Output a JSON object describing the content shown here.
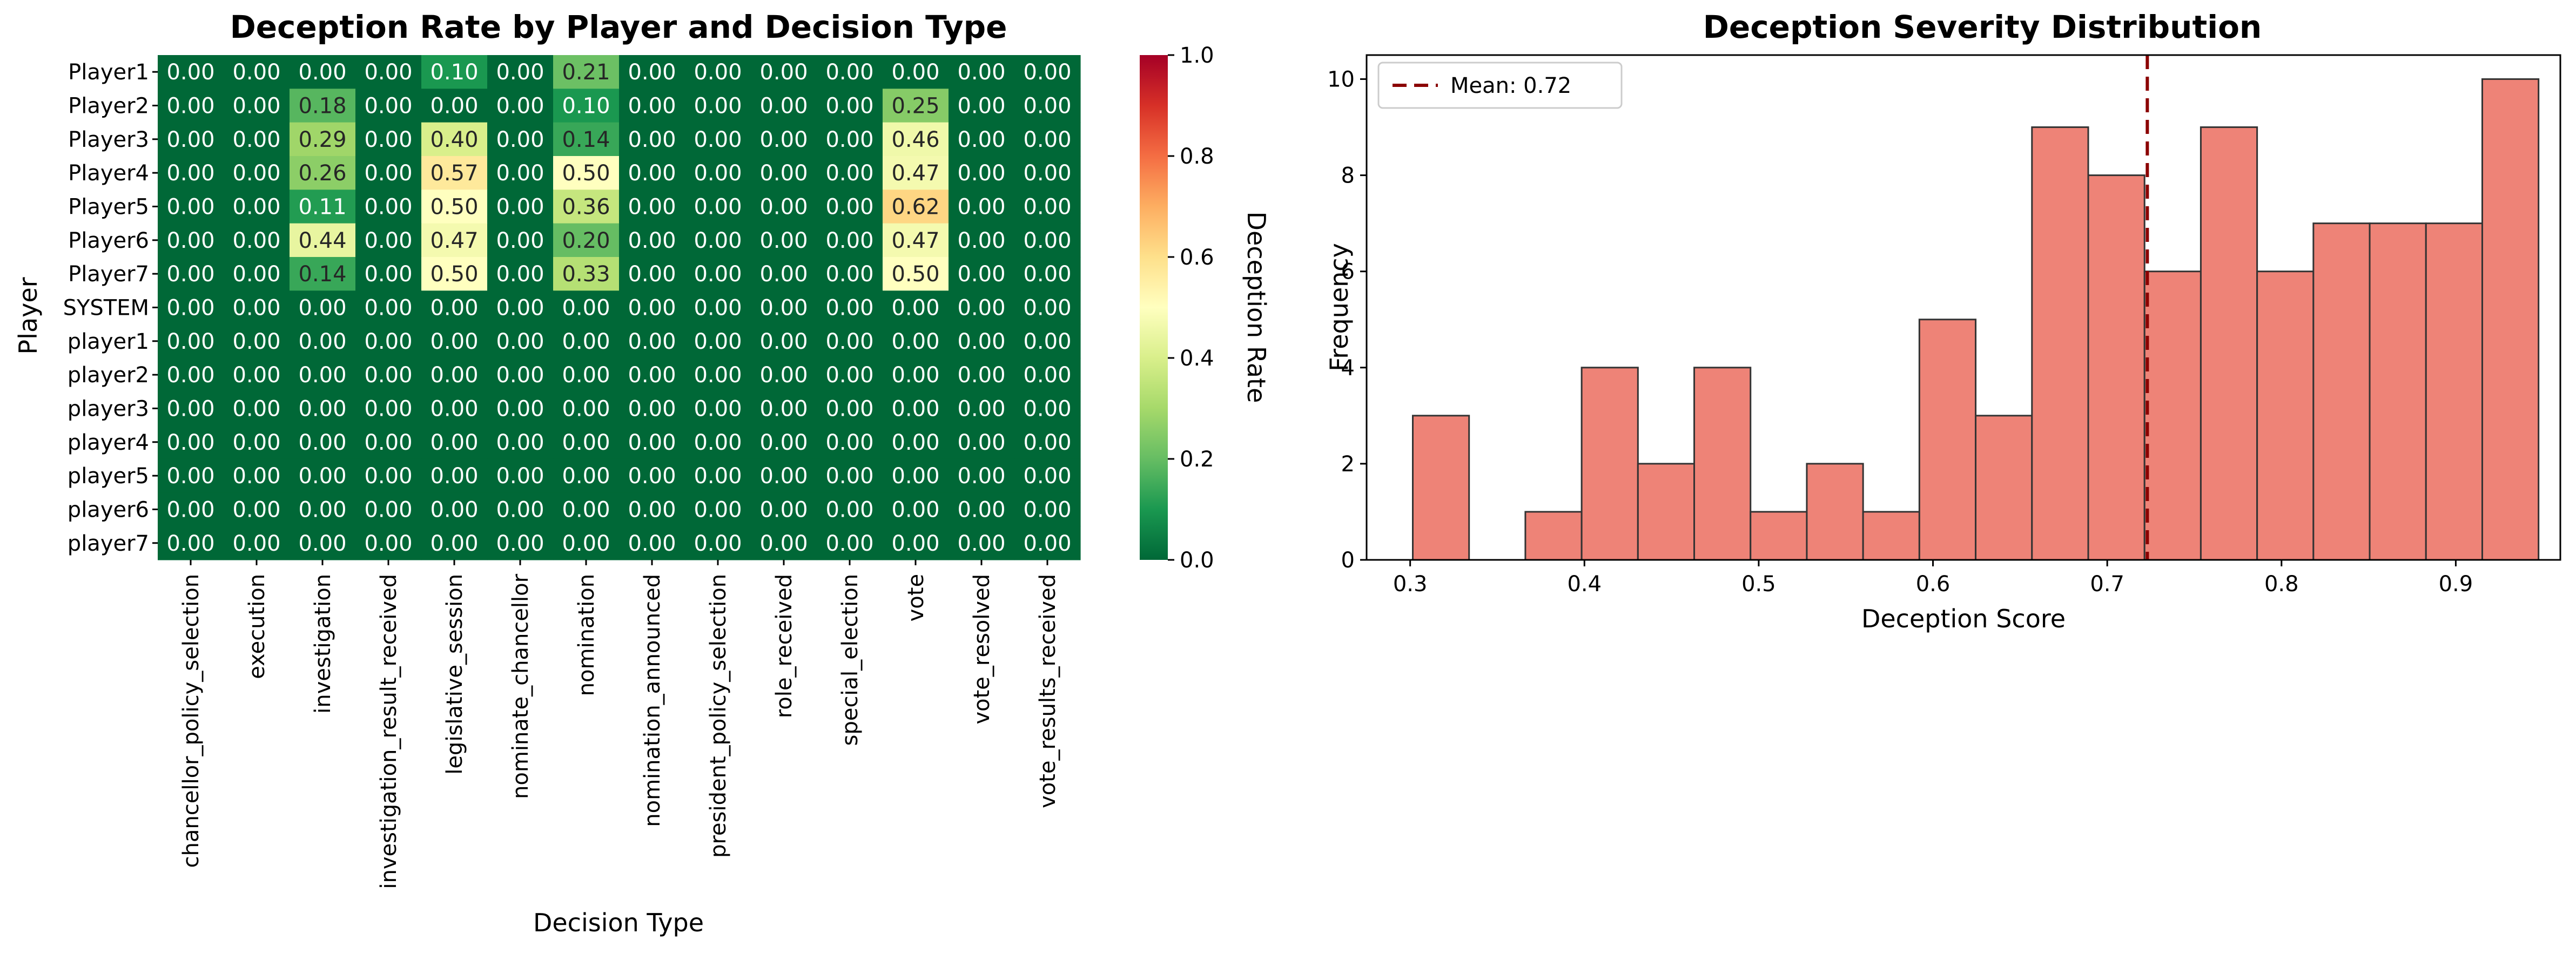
{
  "chart_data": [
    {
      "type": "heatmap",
      "title": "Deception Rate by Player and Decision Type",
      "xlabel": "Decision Type",
      "ylabel": "Player",
      "colorbar_label": "Deception Rate",
      "colormap": "RdYlGn_r",
      "vmin": 0.0,
      "vmax": 1.0,
      "colorbar_ticks": [
        "0.0",
        "0.2",
        "0.4",
        "0.6",
        "0.8",
        "1.0"
      ],
      "rows": [
        "Player1",
        "Player2",
        "Player3",
        "Player4",
        "Player5",
        "Player6",
        "Player7",
        "SYSTEM",
        "player1",
        "player2",
        "player3",
        "player4",
        "player5",
        "player6",
        "player7"
      ],
      "columns": [
        "chancellor_policy_selection",
        "execution",
        "investigation",
        "investigation_result_received",
        "legislative_session",
        "nominate_chancellor",
        "nomination",
        "nomination_announced",
        "president_policy_selection",
        "role_received",
        "special_election",
        "vote",
        "vote_resolved",
        "vote_results_received"
      ],
      "values": [
        [
          0.0,
          0.0,
          0.0,
          0.0,
          0.1,
          0.0,
          0.21,
          0.0,
          0.0,
          0.0,
          0.0,
          0.0,
          0.0,
          0.0
        ],
        [
          0.0,
          0.0,
          0.18,
          0.0,
          0.0,
          0.0,
          0.1,
          0.0,
          0.0,
          0.0,
          0.0,
          0.25,
          0.0,
          0.0
        ],
        [
          0.0,
          0.0,
          0.29,
          0.0,
          0.4,
          0.0,
          0.14,
          0.0,
          0.0,
          0.0,
          0.0,
          0.46,
          0.0,
          0.0
        ],
        [
          0.0,
          0.0,
          0.26,
          0.0,
          0.57,
          0.0,
          0.5,
          0.0,
          0.0,
          0.0,
          0.0,
          0.47,
          0.0,
          0.0
        ],
        [
          0.0,
          0.0,
          0.11,
          0.0,
          0.5,
          0.0,
          0.36,
          0.0,
          0.0,
          0.0,
          0.0,
          0.62,
          0.0,
          0.0
        ],
        [
          0.0,
          0.0,
          0.44,
          0.0,
          0.47,
          0.0,
          0.2,
          0.0,
          0.0,
          0.0,
          0.0,
          0.47,
          0.0,
          0.0
        ],
        [
          0.0,
          0.0,
          0.14,
          0.0,
          0.5,
          0.0,
          0.33,
          0.0,
          0.0,
          0.0,
          0.0,
          0.5,
          0.0,
          0.0
        ],
        [
          0.0,
          0.0,
          0.0,
          0.0,
          0.0,
          0.0,
          0.0,
          0.0,
          0.0,
          0.0,
          0.0,
          0.0,
          0.0,
          0.0
        ],
        [
          0.0,
          0.0,
          0.0,
          0.0,
          0.0,
          0.0,
          0.0,
          0.0,
          0.0,
          0.0,
          0.0,
          0.0,
          0.0,
          0.0
        ],
        [
          0.0,
          0.0,
          0.0,
          0.0,
          0.0,
          0.0,
          0.0,
          0.0,
          0.0,
          0.0,
          0.0,
          0.0,
          0.0,
          0.0
        ],
        [
          0.0,
          0.0,
          0.0,
          0.0,
          0.0,
          0.0,
          0.0,
          0.0,
          0.0,
          0.0,
          0.0,
          0.0,
          0.0,
          0.0
        ],
        [
          0.0,
          0.0,
          0.0,
          0.0,
          0.0,
          0.0,
          0.0,
          0.0,
          0.0,
          0.0,
          0.0,
          0.0,
          0.0,
          0.0
        ],
        [
          0.0,
          0.0,
          0.0,
          0.0,
          0.0,
          0.0,
          0.0,
          0.0,
          0.0,
          0.0,
          0.0,
          0.0,
          0.0,
          0.0
        ],
        [
          0.0,
          0.0,
          0.0,
          0.0,
          0.0,
          0.0,
          0.0,
          0.0,
          0.0,
          0.0,
          0.0,
          0.0,
          0.0,
          0.0
        ],
        [
          0.0,
          0.0,
          0.0,
          0.0,
          0.0,
          0.0,
          0.0,
          0.0,
          0.0,
          0.0,
          0.0,
          0.0,
          0.0,
          0.0
        ]
      ]
    },
    {
      "type": "histogram",
      "title": "Deception Severity Distribution",
      "xlabel": "Deception Score",
      "ylabel": "Frequency",
      "bar_color": "#ee8377",
      "edge_color": "#333333",
      "xlim": [
        0.275,
        0.96
      ],
      "ylim": [
        0,
        10.5
      ],
      "xticks": [
        0.3,
        0.4,
        0.5,
        0.6,
        0.7,
        0.8,
        0.9
      ],
      "xtick_labels": [
        "0.3",
        "0.4",
        "0.5",
        "0.6",
        "0.7",
        "0.8",
        "0.9"
      ],
      "yticks": [
        0,
        2,
        4,
        6,
        8,
        10
      ],
      "ytick_labels": [
        "0",
        "2",
        "4",
        "6",
        "8",
        "10"
      ],
      "bin_edges": [
        0.3015,
        0.3338,
        0.3661,
        0.3984,
        0.4307,
        0.463,
        0.4953,
        0.5276,
        0.5599,
        0.5922,
        0.6245,
        0.6568,
        0.6891,
        0.7214,
        0.7537,
        0.786,
        0.8183,
        0.8506,
        0.8829,
        0.9152,
        0.9475
      ],
      "counts": [
        3,
        0,
        1,
        4,
        2,
        4,
        1,
        2,
        1,
        5,
        3,
        9,
        8,
        6,
        9,
        6,
        7,
        7,
        7,
        10
      ],
      "mean": 0.723,
      "mean_line_color": "#8b0000",
      "legend": {
        "label": "Mean: 0.72",
        "position": "upper-left"
      }
    }
  ]
}
